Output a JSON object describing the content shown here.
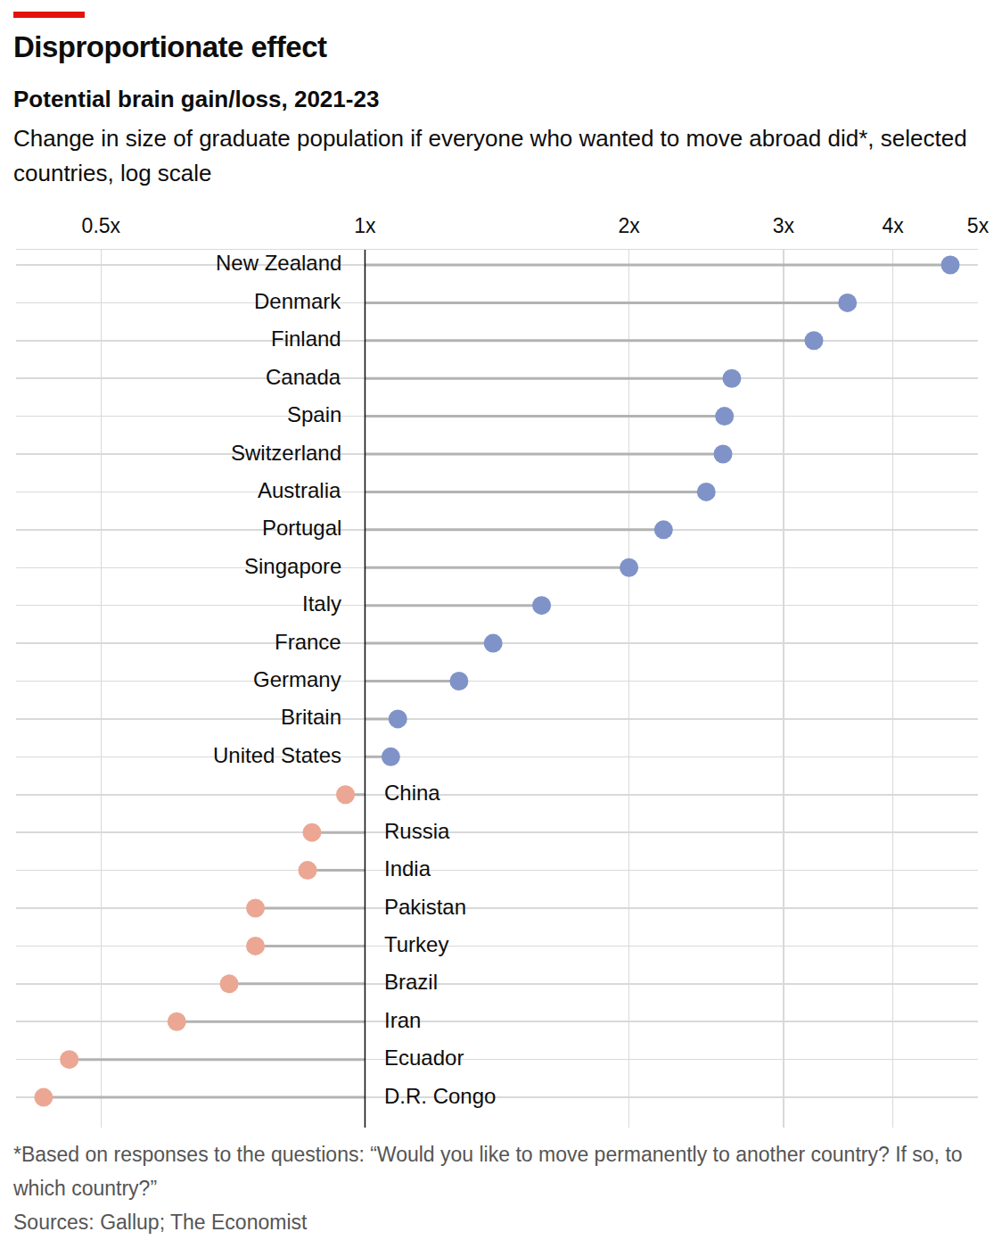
{
  "chart_data": {
    "type": "lollipop",
    "title": "Disproportionate effect",
    "subtitle": "Potential brain gain/loss, 2021-23",
    "description": "Change in size of graduate population if everyone who wanted to move abroad did*, selected countries, log scale",
    "footnote": "*Based on responses to the questions: “Would you like to move permanently to another country? If so, to which country?”",
    "source": "Sources: Gallup; The Economist",
    "orientation": "horizontal",
    "log": "x",
    "grid": true,
    "baseline": 1,
    "categories": [
      "New Zealand",
      "Denmark",
      "Finland",
      "Canada",
      "Spain",
      "Switzerland",
      "Australia",
      "Portugal",
      "Singapore",
      "Italy",
      "France",
      "Germany",
      "Britain",
      "United States",
      "China",
      "Russia",
      "India",
      "Pakistan",
      "Turkey",
      "Brazil",
      "Iran",
      "Ecuador",
      "D.R. Congo"
    ],
    "values": [
      4.65,
      3.55,
      3.25,
      2.62,
      2.57,
      2.56,
      2.45,
      2.19,
      2.0,
      1.59,
      1.4,
      1.28,
      1.09,
      1.07,
      0.95,
      0.87,
      0.86,
      0.75,
      0.75,
      0.7,
      0.61,
      0.46,
      0.43
    ],
    "colors": [
      "#7f93c8",
      "#7f93c8",
      "#7f93c8",
      "#7f93c8",
      "#7f93c8",
      "#7f93c8",
      "#7f93c8",
      "#7f93c8",
      "#7f93c8",
      "#7f93c8",
      "#7f93c8",
      "#7f93c8",
      "#7f93c8",
      "#7f93c8",
      "#eba793",
      "#eba793",
      "#eba793",
      "#eba793",
      "#eba793",
      "#eba793",
      "#eba793",
      "#eba793",
      "#eba793"
    ],
    "xlim": [
      0.4,
      5
    ],
    "xticks": [
      {
        "value": 0.5,
        "label": "0.5x"
      },
      {
        "value": 1,
        "label": "1x"
      },
      {
        "value": 2,
        "label": "2x"
      },
      {
        "value": 3,
        "label": "3x"
      },
      {
        "value": 4,
        "label": "4x"
      },
      {
        "value": 5,
        "label": "5x"
      }
    ]
  }
}
